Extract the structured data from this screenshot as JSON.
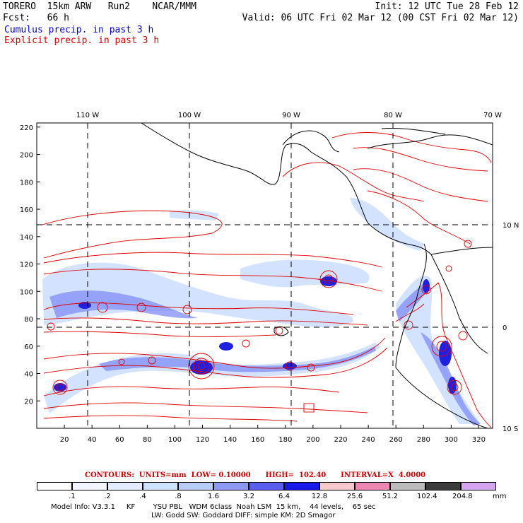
{
  "header": {
    "line1_left": "TORERO  15km ARW   Run2    NCAR/MMM",
    "line1_right": "Init: 12 UTC Tue 28 Feb 12",
    "line2_left": "Fcst:   66 h",
    "line2_right": "Valid: 06 UTC Fri 02 Mar 12 (00 CST Fri 02 Mar 12)",
    "cumulus": "Cumulus precip. in past 3 h",
    "explicit": "Explicit precip. in past 3 h"
  },
  "map": {
    "lon_labels": [
      "110 W",
      "100 W",
      "90 W",
      "80 W",
      "70 W"
    ],
    "lat_labels": [
      "10 N",
      "0",
      "10 S"
    ],
    "x_ticks": [
      "20",
      "40",
      "60",
      "80",
      "100",
      "120",
      "140",
      "160",
      "180",
      "200",
      "220",
      "240",
      "260",
      "280",
      "300",
      "320"
    ],
    "y_ticks": [
      "20",
      "40",
      "60",
      "80",
      "100",
      "120",
      "140",
      "160",
      "180",
      "200",
      "220"
    ],
    "colors": {
      "contour": "#e00000",
      "land": "#000000",
      "precip_light": "#c8dcff",
      "precip_mid": "#7f8cf5",
      "precip_heavy": "#2020e0"
    }
  },
  "contours": {
    "text": "CONTOURS:  UNITS=mm  LOW= 0.10000      HIGH=  102.40      INTERVAL=X  4.0000"
  },
  "colorbar": {
    "labels": [
      ".1",
      ".2",
      ".4",
      ".8",
      "1.6",
      "3.2",
      "6.4",
      "12.8",
      "25.6",
      "51.2",
      "102.4",
      "204.8"
    ],
    "colors": [
      "#ffffff",
      "#f2f7ff",
      "#e2eeff",
      "#cde2ff",
      "#b4cdfa",
      "#8d99f0",
      "#5a5ef0",
      "#1a1ae8",
      "#f7c8cd",
      "#ee88b2",
      "#bdbdbd",
      "#3c3c3c",
      "#d7a6f0"
    ],
    "unit": "mm"
  },
  "model_info": {
    "line1": "Model Info: V3.3.1     KF        YSU PBL   WDM 6class  Noah LSM  15 km,    44 levels,    65 sec",
    "line2": "LW: Godd SW: Goddard DIFF: simple KM: 2D Smagor"
  }
}
